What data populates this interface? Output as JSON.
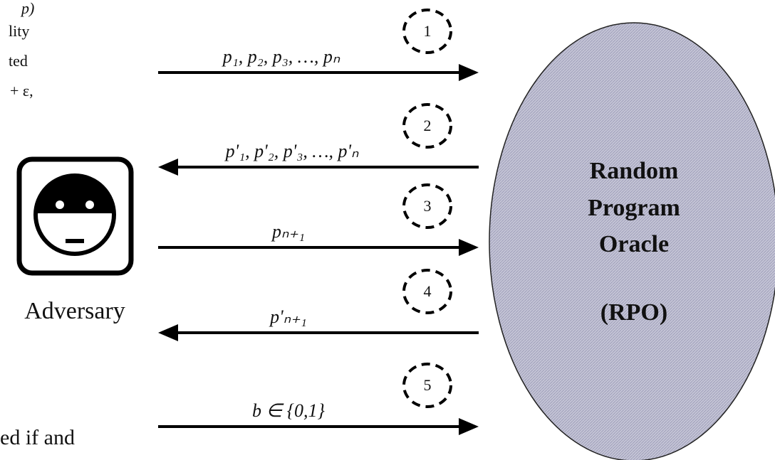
{
  "left_text_fragments": [
    "p)",
    "lity",
    "ted",
    "+ ε,",
    "ed if and"
  ],
  "adversary": {
    "label": "Adversary"
  },
  "oracle": {
    "lines": [
      "Random",
      "Program",
      "Oracle"
    ],
    "abbreviation": "(RPO)"
  },
  "messages": [
    {
      "step": "1",
      "label": "p₁, p₂, p₃, …, pₙ",
      "direction": "right"
    },
    {
      "step": "2",
      "label": "p'₁, p'₂, p'₃, …, p'ₙ",
      "direction": "left"
    },
    {
      "step": "3",
      "label": "pₙ₊₁",
      "direction": "right"
    },
    {
      "step": "4",
      "label": "p'ₙ₊₁",
      "direction": "left"
    },
    {
      "step": "5",
      "label": "b ∈ {0,1}",
      "direction": "right"
    }
  ]
}
